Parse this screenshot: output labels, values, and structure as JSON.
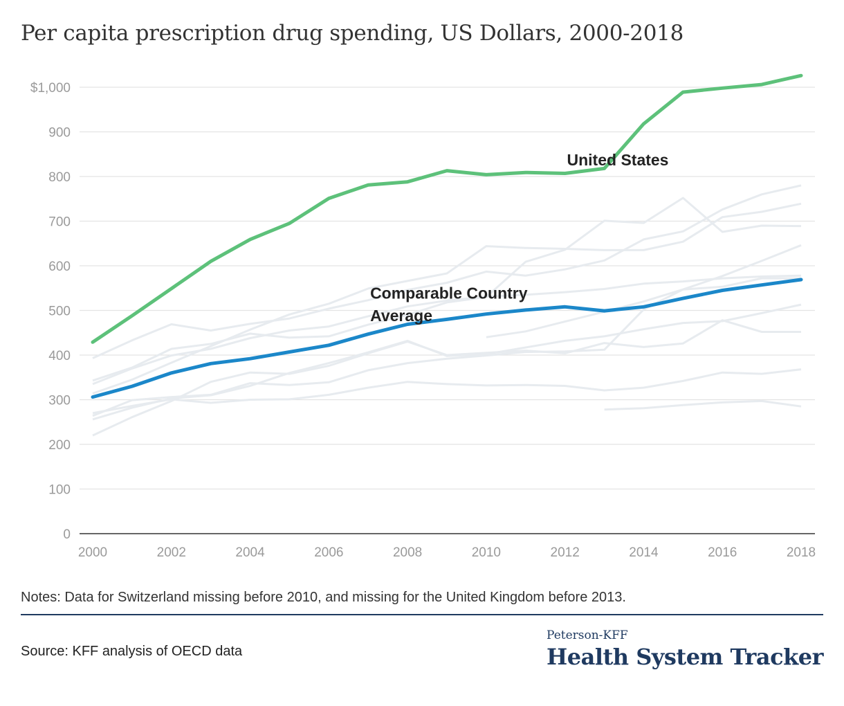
{
  "title": "Per capita prescription drug spending, US Dollars, 2000-2018",
  "notes": "Notes: Data for Switzerland missing before 2010, and missing for the United Kingdom before 2013.",
  "source": "Source: KFF analysis of OECD data",
  "brand": {
    "top": "Peterson-KFF",
    "main": "Health System Tracker",
    "color": "#1f3a60"
  },
  "chart_data": {
    "type": "line",
    "title": "Per capita prescription drug spending, US Dollars, 2000-2018",
    "xlabel": "",
    "ylabel": "",
    "x": [
      2000,
      2001,
      2002,
      2003,
      2004,
      2005,
      2006,
      2007,
      2008,
      2009,
      2010,
      2011,
      2012,
      2013,
      2014,
      2015,
      2016,
      2017,
      2018
    ],
    "x_ticks": [
      "2000",
      "2002",
      "2004",
      "2006",
      "2008",
      "2010",
      "2012",
      "2014",
      "2016",
      "2018"
    ],
    "y_ticks": [
      "0",
      "100",
      "200",
      "300",
      "400",
      "500",
      "600",
      "700",
      "800",
      "900",
      "$1,000"
    ],
    "ylim": [
      0,
      1000
    ],
    "grid": true,
    "series": [
      {
        "name": "United States",
        "color": "#5dc17a",
        "highlight": true,
        "values": [
          429,
          488,
          549,
          610,
          659,
          695,
          751,
          781,
          788,
          813,
          804,
          809,
          807,
          818,
          918,
          989,
          998,
          1006,
          1026
        ]
      },
      {
        "name": "Comparable Country Average",
        "color": "#1b87c9",
        "highlight": true,
        "values": [
          306,
          330,
          360,
          381,
          392,
          407,
          422,
          447,
          469,
          480,
          492,
          501,
          508,
          499,
          508,
          527,
          545,
          557,
          569
        ]
      }
    ],
    "background_series": {
      "color": "#e7ebef",
      "lines": [
        [
          393,
          433,
          469,
          455,
          470,
          482,
          504,
          523,
          546,
          562,
          587,
          578,
          592,
          612,
          659,
          677,
          726,
          760,
          780
        ],
        [
          343,
          372,
          414,
          425,
          448,
          439,
          442,
          468,
          490,
          518,
          530,
          609,
          636,
          701,
          696,
          752,
          676,
          690,
          689
        ],
        [
          314,
          345,
          383,
          420,
          457,
          491,
          515,
          549,
          566,
          583,
          644,
          640,
          638,
          635,
          635,
          654,
          709,
          721,
          739
        ],
        [
          256,
          282,
          303,
          310,
          331,
          360,
          382,
          406,
          432,
          398,
          402,
          417,
          432,
          442,
          458,
          472,
          476,
          494,
          513
        ],
        [
          220,
          261,
          297,
          340,
          361,
          358,
          376,
          404,
          430,
          400,
          405,
          410,
          404,
          427,
          418,
          426,
          478,
          452,
          452
        ],
        [
          270,
          286,
          301,
          293,
          300,
          301,
          311,
          327,
          340,
          335,
          332,
          333,
          331,
          321,
          327,
          342,
          361,
          358,
          368
        ],
        [
          264,
          299,
          306,
          311,
          337,
          333,
          339,
          366,
          382,
          392,
          399,
          407,
          408,
          412,
          502,
          547,
          553,
          572,
          572
        ],
        [
          null,
          null,
          null,
          null,
          null,
          null,
          null,
          null,
          null,
          null,
          440,
          453,
          475,
          497,
          520,
          547,
          577,
          611,
          646
        ],
        [
          null,
          null,
          null,
          null,
          null,
          null,
          null,
          null,
          null,
          null,
          null,
          null,
          null,
          278,
          281,
          288,
          294,
          297,
          285
        ],
        [
          335,
          370,
          399,
          414,
          438,
          455,
          464,
          487,
          509,
          522,
          531,
          535,
          541,
          548,
          560,
          565,
          572,
          576,
          578
        ]
      ]
    },
    "annotations": [
      {
        "text": "United States",
        "x": 2012.05,
        "y": 825
      },
      {
        "text": "Comparable Country",
        "x": 2007.05,
        "y": 526
      },
      {
        "text": "Average",
        "x": 2007.05,
        "y": 476
      }
    ]
  }
}
